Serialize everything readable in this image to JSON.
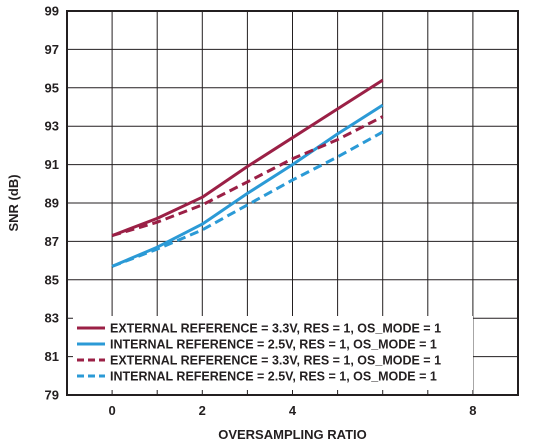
{
  "chart_data": {
    "type": "line",
    "xlabel": "OVERSAMPLING RATIO",
    "ylabel": "SNR (dB)",
    "xlim": [
      -1,
      9
    ],
    "ylim": [
      79,
      99
    ],
    "x_ticks": [
      0,
      2,
      4,
      8
    ],
    "x_tick_labels": [
      "0",
      "2",
      "4",
      "8"
    ],
    "y_ticks": [
      79,
      81,
      83,
      85,
      87,
      89,
      91,
      93,
      95,
      97,
      99
    ],
    "y_tick_labels": [
      "79",
      "81",
      "83",
      "85",
      "87",
      "89",
      "91",
      "93",
      "95",
      "97",
      "99"
    ],
    "grid": true,
    "legend_position": "bottom-left",
    "x_values": [
      0,
      1,
      2,
      3,
      4,
      5,
      6
    ],
    "series": [
      {
        "name": "EXTERNAL REFERENCE = 3.3V, RES = 1, OS_MODE = 1",
        "color": "#9b2046",
        "dash": "solid",
        "values": [
          87.3,
          88.2,
          89.3,
          90.9,
          92.4,
          93.9,
          95.4
        ]
      },
      {
        "name": "INTERNAL REFERENCE = 2.5V, RES = 1, OS_MODE = 1",
        "color": "#2b9ad6",
        "dash": "solid",
        "values": [
          85.7,
          86.7,
          87.9,
          89.5,
          91.0,
          92.6,
          94.1
        ]
      },
      {
        "name": "EXTERNAL REFERENCE = 3.3V, RES = 1, OS_MODE = 1",
        "color": "#9b2046",
        "dash": "dashed",
        "values": [
          87.3,
          88.0,
          88.9,
          90.1,
          91.3,
          92.3,
          93.5
        ]
      },
      {
        "name": "INTERNAL REFERENCE = 2.5V, RES = 1, OS_MODE = 1",
        "color": "#2b9ad6",
        "dash": "dashed",
        "values": [
          85.7,
          86.6,
          87.6,
          88.9,
          90.2,
          91.4,
          92.7
        ]
      }
    ]
  }
}
